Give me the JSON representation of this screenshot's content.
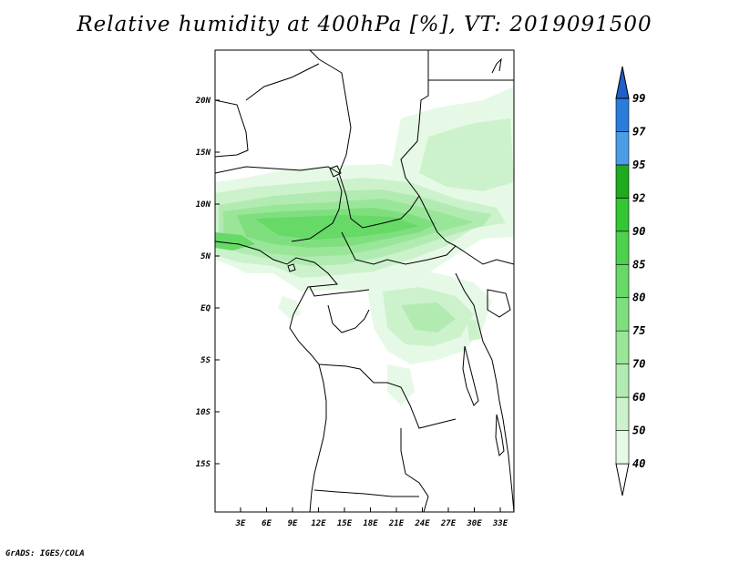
{
  "title": "Relative humidity at 400hPa [%], VT: 2019091500",
  "credit": "GrADS: IGES/COLA",
  "map": {
    "lat_labels": [
      "20N",
      "15N",
      "10N",
      "5N",
      "EQ",
      "5S",
      "10S",
      "15S"
    ],
    "lon_labels": [
      "3E",
      "6E",
      "9E",
      "12E",
      "15E",
      "18E",
      "21E",
      "24E",
      "27E",
      "30E",
      "33E"
    ]
  },
  "colorbar": {
    "levels": [
      "40",
      "50",
      "60",
      "70",
      "75",
      "80",
      "85",
      "90",
      "92",
      "95",
      "97",
      "99"
    ],
    "colors": [
      "#ffffff",
      "#e6f9e6",
      "#ccf2cc",
      "#b2ebb2",
      "#99e699",
      "#7fdf7f",
      "#66d966",
      "#4dd24d",
      "#33c733",
      "#1faa1f",
      "#4c9de6",
      "#2b7ddc",
      "#1f5fc8"
    ]
  },
  "humidity_colors": {
    "r40": "#e6f9e6",
    "r50": "#ccf2cc",
    "r60": "#b2ebb2",
    "r70": "#99e699",
    "r75": "#7fdf7f",
    "r80": "#66d966"
  }
}
